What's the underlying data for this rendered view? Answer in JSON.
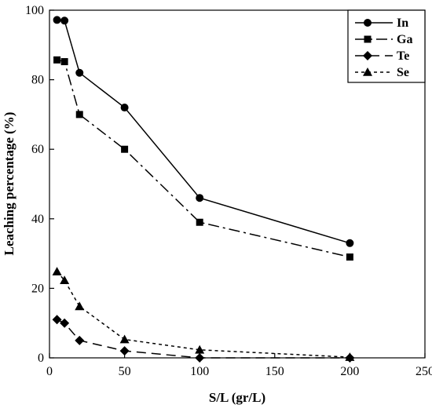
{
  "chart_data": {
    "type": "line",
    "title": "",
    "xlabel": "S/L (gr/L)",
    "ylabel": "Leaching percentage (%)",
    "xlim": [
      0,
      250
    ],
    "ylim": [
      0,
      100
    ],
    "x_ticks": [
      0,
      50,
      100,
      150,
      200,
      250
    ],
    "y_ticks": [
      0,
      20,
      40,
      60,
      80,
      100
    ],
    "x_tick_labels": [
      "0",
      "50",
      "100",
      "150",
      "200",
      "250"
    ],
    "y_tick_labels": [
      "0",
      "20",
      "40",
      "60",
      "80",
      "100"
    ],
    "grid": false,
    "legend_position": "top-right",
    "series": [
      {
        "name": "In",
        "marker": "circle",
        "line_style": "solid",
        "x": [
          5,
          10,
          20,
          50,
          100,
          200
        ],
        "y": [
          97.2,
          97,
          82,
          72,
          46,
          33
        ]
      },
      {
        "name": "Ga",
        "marker": "square",
        "line_style": "dash-dot",
        "x": [
          5,
          10,
          20,
          50,
          100,
          200
        ],
        "y": [
          85.7,
          85.2,
          70,
          60,
          39,
          29
        ]
      },
      {
        "name": "Te",
        "marker": "diamond",
        "line_style": "long-dash",
        "x": [
          5,
          10,
          20,
          50,
          100,
          200
        ],
        "y": [
          11,
          10,
          5,
          2,
          0,
          0
        ]
      },
      {
        "name": "Se",
        "marker": "triangle",
        "line_style": "dotted",
        "x": [
          5,
          10,
          20,
          50,
          100,
          200
        ],
        "y": [
          24.8,
          22.3,
          14.8,
          5.3,
          2.3,
          0.2
        ]
      }
    ]
  }
}
